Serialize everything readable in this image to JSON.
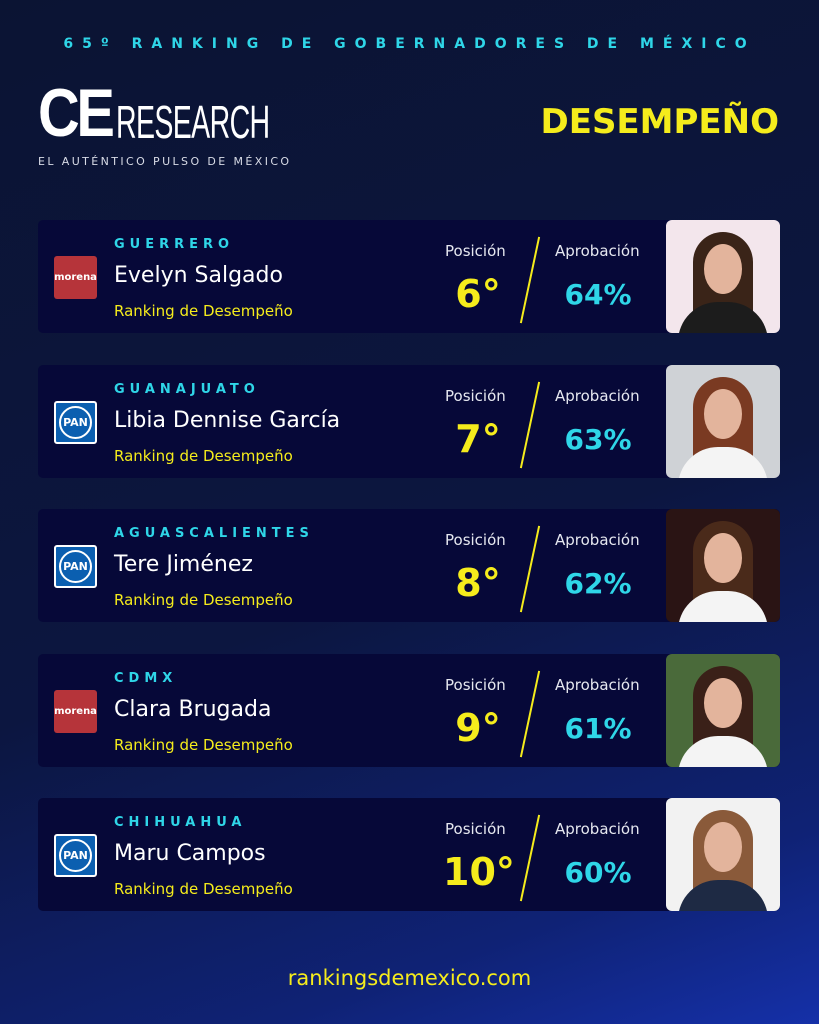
{
  "header": {
    "edition": "65º RANKING DE GOBERNADORES DE MÉXICO",
    "logo_ce": "CE",
    "logo_research": "RESEARCH",
    "tagline": "EL AUTÉNTICO PULSO DE MÉXICO",
    "section": "DESEMPEÑO"
  },
  "labels": {
    "position": "Posición",
    "approval": "Aprobación",
    "subtitle": "Ranking de Desempeño"
  },
  "governors": [
    {
      "state": "GUERRERO",
      "name": "Evelyn Salgado",
      "party": "morena",
      "position": "6°",
      "approval": "64%",
      "photo_bg": "#f3e6ec",
      "body": "#1c1c1c",
      "hair": "#3a2418"
    },
    {
      "state": "GUANAJUATO",
      "name": "Libia Dennise García",
      "party": "PAN",
      "position": "7°",
      "approval": "63%",
      "photo_bg": "#cfd2d6",
      "body": "#f4f4f4",
      "hair": "#7a3a22"
    },
    {
      "state": "AGUASCALIENTES",
      "name": "Tere Jiménez",
      "party": "PAN",
      "position": "8°",
      "approval": "62%",
      "photo_bg": "#2a1414",
      "body": "#f4f4f4",
      "hair": "#4a2a1a"
    },
    {
      "state": "CDMX",
      "name": "Clara Brugada",
      "party": "morena",
      "position": "9°",
      "approval": "61%",
      "photo_bg": "#4a6a3a",
      "body": "#f4f4f4",
      "hair": "#3a2018"
    },
    {
      "state": "CHIHUAHUA",
      "name": "Maru Campos",
      "party": "PAN",
      "position": "10°",
      "approval": "60%",
      "photo_bg": "#f2f2f2",
      "body": "#1e2a44",
      "hair": "#8a5a3a"
    }
  ],
  "footer": {
    "url": "rankingsdemexico.com"
  }
}
